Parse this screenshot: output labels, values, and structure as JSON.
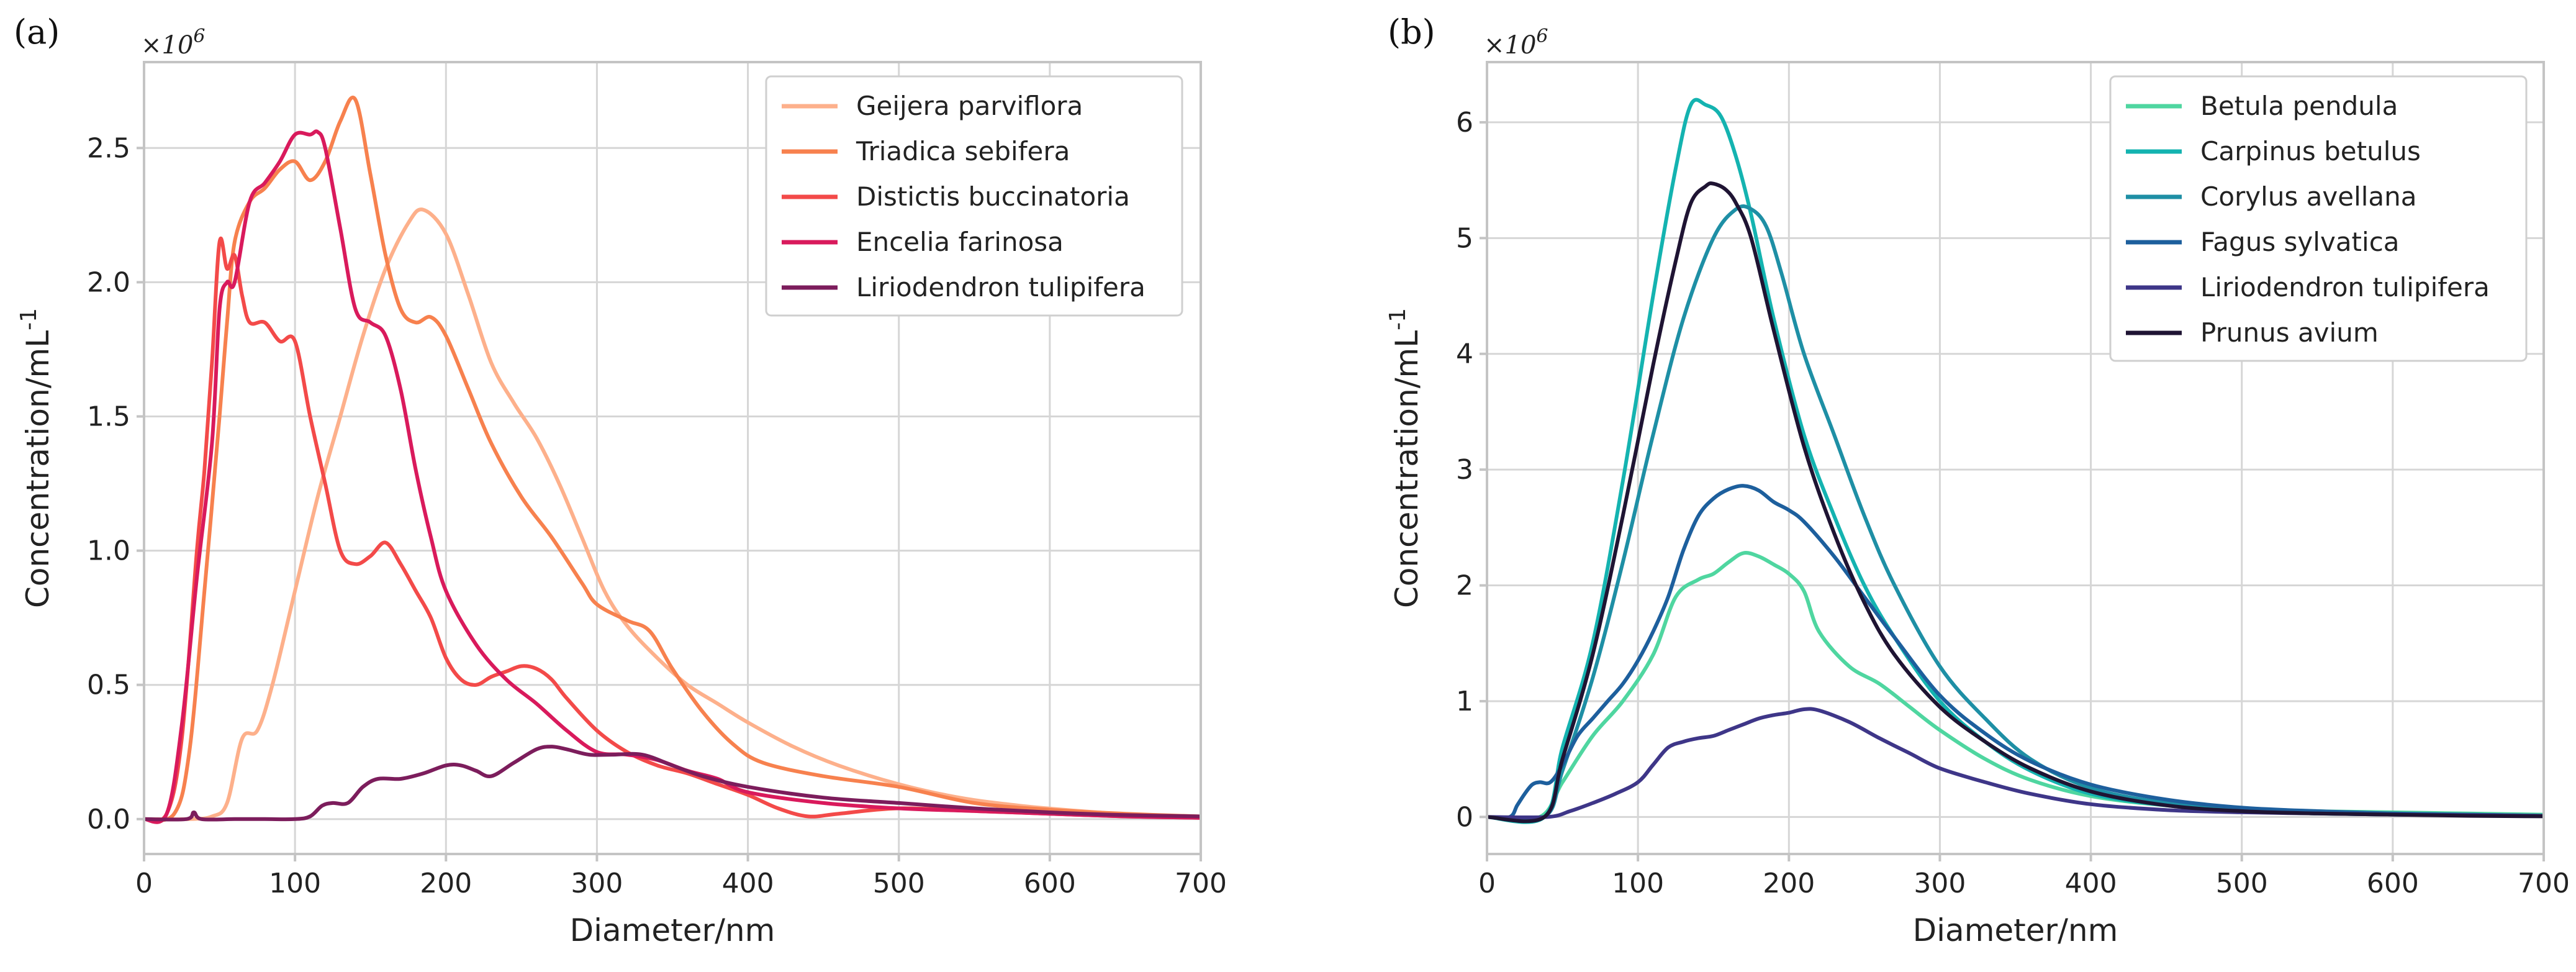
{
  "chart_data": [
    {
      "type": "line",
      "panel_label": "(a)",
      "xlabel": "Diameter/nm",
      "ylabel": "Concentration/mL",
      "ylabel_exp": "-1",
      "multiplier": "×10",
      "multiplier_exp": "6",
      "xlim": [
        0,
        700
      ],
      "ylim": [
        -0.13,
        2.82
      ],
      "xticks": [
        0,
        100,
        200,
        300,
        400,
        500,
        600,
        700
      ],
      "yticks": [
        0.0,
        0.5,
        1.0,
        1.5,
        2.0,
        2.5
      ],
      "ytick_labels": [
        "0.0",
        "0.5",
        "1.0",
        "1.5",
        "2.0",
        "2.5"
      ],
      "legend_position": "top-right",
      "series": [
        {
          "name": "Geijera parviflora",
          "color": "#fdb08b",
          "x": [
            0,
            30,
            45,
            55,
            65,
            75,
            85,
            100,
            115,
            130,
            145,
            160,
            175,
            185,
            200,
            215,
            230,
            245,
            260,
            275,
            290,
            305,
            320,
            340,
            360,
            380,
            400,
            430,
            460,
            500,
            540,
            580,
            620,
            660,
            700
          ],
          "y": [
            0,
            0,
            0.01,
            0.06,
            0.3,
            0.33,
            0.5,
            0.85,
            1.2,
            1.5,
            1.8,
            2.05,
            2.22,
            2.27,
            2.18,
            1.95,
            1.7,
            1.55,
            1.42,
            1.25,
            1.05,
            0.85,
            0.72,
            0.6,
            0.5,
            0.43,
            0.36,
            0.27,
            0.2,
            0.13,
            0.08,
            0.05,
            0.03,
            0.015,
            0.01
          ]
        },
        {
          "name": "Triadica sebifera",
          "color": "#f7814e",
          "x": [
            0,
            20,
            30,
            40,
            50,
            55,
            60,
            70,
            80,
            90,
            100,
            110,
            120,
            130,
            140,
            150,
            160,
            170,
            180,
            190,
            200,
            215,
            230,
            250,
            270,
            290,
            300,
            320,
            335,
            350,
            370,
            390,
            410,
            450,
            500,
            550,
            600,
            650,
            700
          ],
          "y": [
            0,
            0.02,
            0.25,
            0.85,
            1.5,
            1.85,
            2.15,
            2.3,
            2.35,
            2.42,
            2.45,
            2.38,
            2.45,
            2.6,
            2.68,
            2.4,
            2.1,
            1.9,
            1.85,
            1.87,
            1.8,
            1.6,
            1.4,
            1.2,
            1.05,
            0.88,
            0.8,
            0.74,
            0.7,
            0.56,
            0.4,
            0.28,
            0.21,
            0.16,
            0.12,
            0.06,
            0.035,
            0.02,
            0.01
          ]
        },
        {
          "name": "Distictis buccinatoria",
          "color": "#f34a49",
          "x": [
            0,
            15,
            25,
            35,
            40,
            45,
            50,
            55,
            60,
            65,
            70,
            80,
            90,
            100,
            110,
            120,
            130,
            140,
            150,
            160,
            170,
            180,
            190,
            200,
            210,
            220,
            230,
            240,
            250,
            260,
            270,
            280,
            300,
            320,
            340,
            360,
            380,
            400,
            420,
            440,
            460,
            500,
            550,
            600,
            650,
            700
          ],
          "y": [
            0,
            0.02,
            0.3,
            1.0,
            1.3,
            1.7,
            2.15,
            2.05,
            2.1,
            1.95,
            1.85,
            1.85,
            1.78,
            1.78,
            1.5,
            1.25,
            1.0,
            0.95,
            0.98,
            1.03,
            0.95,
            0.85,
            0.75,
            0.6,
            0.52,
            0.5,
            0.53,
            0.55,
            0.57,
            0.56,
            0.52,
            0.45,
            0.33,
            0.25,
            0.2,
            0.17,
            0.13,
            0.09,
            0.04,
            0.01,
            0.02,
            0.04,
            0.03,
            0.02,
            0.01,
            0.005
          ]
        },
        {
          "name": "Encelia farinosa",
          "color": "#d91a5c",
          "x": [
            0,
            15,
            25,
            35,
            45,
            50,
            55,
            60,
            70,
            80,
            90,
            100,
            110,
            115,
            120,
            130,
            140,
            150,
            160,
            170,
            180,
            190,
            200,
            220,
            240,
            260,
            280,
            300,
            320,
            340,
            360,
            380,
            400,
            450,
            500,
            550,
            600,
            650,
            700
          ],
          "y": [
            0,
            0.02,
            0.35,
            0.9,
            1.4,
            1.9,
            2.0,
            2.0,
            2.3,
            2.37,
            2.45,
            2.55,
            2.55,
            2.56,
            2.5,
            2.2,
            1.9,
            1.85,
            1.8,
            1.6,
            1.3,
            1.05,
            0.85,
            0.65,
            0.52,
            0.43,
            0.33,
            0.25,
            0.24,
            0.22,
            0.18,
            0.15,
            0.1,
            0.06,
            0.04,
            0.03,
            0.02,
            0.01,
            0.005
          ]
        },
        {
          "name": "Liriodendron tulipifera",
          "color": "#7c1d5c",
          "x": [
            0,
            28,
            33,
            38,
            60,
            80,
            100,
            110,
            118,
            125,
            135,
            145,
            155,
            170,
            185,
            200,
            210,
            220,
            230,
            245,
            260,
            270,
            280,
            295,
            310,
            330,
            350,
            370,
            400,
            450,
            500,
            550,
            600,
            650,
            700
          ],
          "y": [
            0,
            0,
            0.025,
            0,
            0,
            0,
            0,
            0.01,
            0.05,
            0.06,
            0.06,
            0.12,
            0.15,
            0.15,
            0.17,
            0.2,
            0.2,
            0.18,
            0.16,
            0.21,
            0.26,
            0.27,
            0.26,
            0.24,
            0.24,
            0.24,
            0.2,
            0.16,
            0.12,
            0.08,
            0.06,
            0.04,
            0.025,
            0.015,
            0.01
          ]
        }
      ]
    },
    {
      "type": "line",
      "panel_label": "(b)",
      "xlabel": "Diameter/nm",
      "ylabel": "Concentration/mL",
      "ylabel_exp": "-1",
      "multiplier": "×10",
      "multiplier_exp": "6",
      "xlim": [
        0,
        700
      ],
      "ylim": [
        -0.32,
        6.52
      ],
      "xticks": [
        0,
        100,
        200,
        300,
        400,
        500,
        600,
        700
      ],
      "yticks": [
        0,
        1,
        2,
        3,
        4,
        5,
        6
      ],
      "ytick_labels": [
        "0",
        "1",
        "2",
        "3",
        "4",
        "5",
        "6"
      ],
      "legend_position": "top-right",
      "series": [
        {
          "name": "Betula pendula",
          "color": "#4fd6a0",
          "x": [
            0,
            35,
            50,
            70,
            90,
            110,
            125,
            140,
            150,
            160,
            170,
            180,
            190,
            200,
            210,
            220,
            240,
            260,
            280,
            300,
            330,
            360,
            400,
            450,
            500,
            550,
            600,
            650,
            700
          ],
          "y": [
            0,
            0,
            0.3,
            0.7,
            1.0,
            1.4,
            1.9,
            2.05,
            2.1,
            2.2,
            2.28,
            2.25,
            2.18,
            2.1,
            1.95,
            1.6,
            1.3,
            1.15,
            0.95,
            0.75,
            0.5,
            0.32,
            0.18,
            0.1,
            0.07,
            0.05,
            0.04,
            0.03,
            0.02
          ]
        },
        {
          "name": "Carpinus betulus",
          "color": "#14b3b0",
          "x": [
            0,
            38,
            50,
            70,
            90,
            110,
            125,
            135,
            145,
            155,
            165,
            175,
            190,
            210,
            230,
            250,
            270,
            300,
            330,
            360,
            400,
            450,
            500,
            550,
            600,
            650,
            700
          ],
          "y": [
            0,
            0,
            0.6,
            1.5,
            2.9,
            4.5,
            5.6,
            6.15,
            6.15,
            6.05,
            5.7,
            5.2,
            4.3,
            3.3,
            2.6,
            2.0,
            1.55,
            1.0,
            0.65,
            0.4,
            0.2,
            0.1,
            0.05,
            0.03,
            0.02,
            0.015,
            0.01
          ]
        },
        {
          "name": "Corylus avellana",
          "color": "#1e8fa5",
          "x": [
            0,
            38,
            50,
            70,
            90,
            110,
            130,
            150,
            165,
            175,
            185,
            195,
            210,
            230,
            250,
            270,
            300,
            330,
            360,
            400,
            450,
            500,
            550,
            600,
            650,
            700
          ],
          "y": [
            0,
            0,
            0.4,
            1.2,
            2.2,
            3.3,
            4.3,
            5.0,
            5.25,
            5.25,
            5.1,
            4.7,
            4.0,
            3.3,
            2.6,
            2.0,
            1.3,
            0.85,
            0.5,
            0.25,
            0.12,
            0.06,
            0.04,
            0.03,
            0.02,
            0.01
          ]
        },
        {
          "name": "Fagus sylvatica",
          "color": "#1d5f9d",
          "x": [
            0,
            15,
            20,
            25,
            30,
            35,
            42,
            50,
            60,
            70,
            80,
            90,
            100,
            110,
            120,
            130,
            140,
            150,
            160,
            170,
            180,
            190,
            200,
            210,
            230,
            250,
            270,
            300,
            330,
            360,
            400,
            450,
            500,
            550,
            600,
            650,
            700
          ],
          "y": [
            0,
            0,
            0.1,
            0.2,
            0.28,
            0.3,
            0.3,
            0.45,
            0.7,
            0.85,
            1.0,
            1.15,
            1.35,
            1.6,
            1.9,
            2.3,
            2.6,
            2.75,
            2.83,
            2.86,
            2.82,
            2.72,
            2.65,
            2.55,
            2.25,
            1.9,
            1.55,
            1.05,
            0.72,
            0.48,
            0.28,
            0.15,
            0.08,
            0.05,
            0.03,
            0.02,
            0.01
          ]
        },
        {
          "name": "Liriodendron tulipifera",
          "color": "#3e3688",
          "x": [
            0,
            40,
            55,
            70,
            85,
            100,
            110,
            120,
            130,
            140,
            150,
            160,
            170,
            180,
            190,
            200,
            210,
            220,
            240,
            260,
            280,
            300,
            330,
            360,
            400,
            450,
            500,
            550,
            600,
            650,
            700
          ],
          "y": [
            0,
            0,
            0.05,
            0.12,
            0.2,
            0.3,
            0.45,
            0.6,
            0.65,
            0.68,
            0.7,
            0.75,
            0.8,
            0.85,
            0.88,
            0.9,
            0.93,
            0.92,
            0.82,
            0.68,
            0.55,
            0.42,
            0.3,
            0.2,
            0.11,
            0.06,
            0.04,
            0.03,
            0.02,
            0.015,
            0.01
          ]
        },
        {
          "name": "Prunus avium",
          "color": "#1f1433",
          "x": [
            0,
            38,
            50,
            70,
            90,
            110,
            125,
            135,
            145,
            150,
            158,
            165,
            175,
            190,
            210,
            230,
            250,
            270,
            300,
            330,
            360,
            400,
            450,
            500,
            550,
            600,
            650,
            700
          ],
          "y": [
            0,
            0,
            0.5,
            1.4,
            2.6,
            3.9,
            4.8,
            5.3,
            5.45,
            5.47,
            5.42,
            5.3,
            5.0,
            4.2,
            3.2,
            2.45,
            1.85,
            1.4,
            0.95,
            0.65,
            0.42,
            0.22,
            0.1,
            0.05,
            0.03,
            0.02,
            0.01,
            0.005
          ]
        }
      ]
    }
  ]
}
